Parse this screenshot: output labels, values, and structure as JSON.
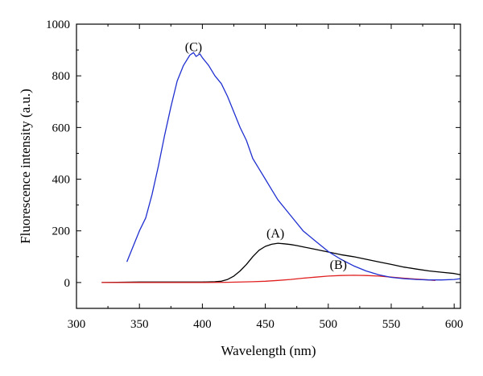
{
  "chart_data": {
    "type": "line",
    "title": "",
    "xlabel": "Wavelength (nm)",
    "ylabel": "Fluorescence intensity (a.u.)",
    "xlim": [
      300,
      605
    ],
    "ylim": [
      -100,
      1000
    ],
    "xticks": [
      "300",
      "350",
      "400",
      "450",
      "500",
      "550",
      "600"
    ],
    "yticks": [
      "0",
      "200",
      "400",
      "600",
      "800",
      "1000"
    ],
    "grid": false,
    "legend": "none",
    "series": [
      {
        "label": "(A)",
        "color": "#000000",
        "x": [
          320,
          350,
          380,
          400,
          410,
          415,
          420,
          425,
          430,
          435,
          440,
          445,
          450,
          455,
          460,
          465,
          470,
          475,
          480,
          490,
          500,
          510,
          520,
          530,
          540,
          550,
          560,
          570,
          580,
          590,
          600,
          605
        ],
        "y": [
          0,
          2,
          2,
          2,
          3,
          5,
          12,
          25,
          45,
          70,
          100,
          125,
          140,
          148,
          152,
          150,
          147,
          143,
          138,
          128,
          118,
          108,
          100,
          90,
          80,
          70,
          60,
          52,
          45,
          40,
          35,
          30
        ]
      },
      {
        "label": "(B)",
        "color": "#e02020",
        "x": [
          320,
          340,
          360,
          380,
          400,
          420,
          440,
          450,
          460,
          470,
          480,
          490,
          500,
          510,
          520,
          530,
          540,
          550,
          560,
          570,
          580,
          585
        ],
        "y": [
          0,
          0,
          0,
          0,
          0,
          1,
          3,
          5,
          8,
          12,
          17,
          21,
          25,
          27,
          28,
          27,
          25,
          21,
          17,
          13,
          10,
          8
        ]
      },
      {
        "label": "(C)",
        "color": "#2030d0",
        "x": [
          340,
          345,
          350,
          355,
          360,
          365,
          370,
          375,
          380,
          385,
          390,
          393,
          395,
          398,
          400,
          405,
          410,
          415,
          420,
          425,
          430,
          435,
          440,
          445,
          450,
          455,
          460,
          470,
          480,
          490,
          500,
          510,
          520,
          530,
          540,
          550,
          560,
          570,
          580,
          590,
          600,
          605
        ],
        "y": [
          80,
          140,
          200,
          250,
          340,
          450,
          570,
          680,
          780,
          840,
          880,
          890,
          875,
          885,
          870,
          840,
          800,
          770,
          720,
          660,
          600,
          550,
          480,
          440,
          400,
          360,
          320,
          260,
          200,
          160,
          120,
          90,
          65,
          45,
          30,
          20,
          15,
          12,
          10,
          10,
          12,
          15
        ]
      }
    ],
    "annotations": [
      {
        "text": "(C)",
        "x": 393,
        "y": 895
      },
      {
        "text": "(A)",
        "x": 458,
        "y": 175
      },
      {
        "text": "(B)",
        "x": 508,
        "y": 52
      }
    ]
  }
}
